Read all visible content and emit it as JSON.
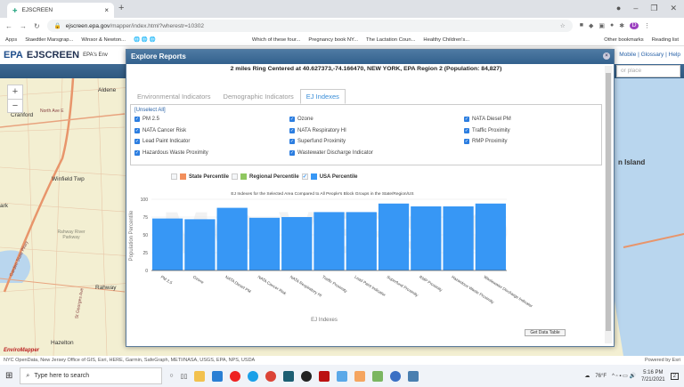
{
  "browser": {
    "tab_title": "EJSCREEN",
    "url_host": "ejscreen.epa.gov",
    "url_path": "/mapper/index.html?wherestr=10302",
    "bookmarks": [
      "Apps",
      "Staedtler Marsgrap...",
      "Winsor & Newton...",
      "Which of these four...",
      "Pregnancy book NY...",
      "The Lactation Coun...",
      "Healthy Children's..."
    ],
    "other_bookmarks": "Other bookmarks",
    "reading_list": "Reading list",
    "profile_initial": "D"
  },
  "app": {
    "logo": "EPA",
    "title": "EJSCREEN",
    "subtitle": "EPA's Env",
    "links": [
      "Mobile",
      "Glossary",
      "Help"
    ],
    "search_placeholder": "or place"
  },
  "map": {
    "labels": [
      "Aldene",
      "Cranford",
      "North Ave E",
      "Winfield Twp",
      "ark",
      "Rahway River Parkway",
      "Rahway",
      "Hazelton",
      "Garden State Pkwy",
      "St Georges Ave",
      "n Island",
      "EnviroMapper"
    ],
    "attribution": "NYC OpenData, New Jersey Office of GIS, Esri, HERE, Garmin, SafeGraph, METI/NASA, USGS, EPA, NPS, USDA",
    "powered": "Powered by Esri"
  },
  "modal": {
    "title": "Explore Reports",
    "subtitle": "2 miles Ring Centered at 40.627373,-74.166470, NEW YORK, EPA Region 2 (Population: 84,827)",
    "tabs": [
      {
        "label": "Environmental Indicators",
        "active": false
      },
      {
        "label": "Demographic Indicators",
        "active": false
      },
      {
        "label": "EJ Indexes",
        "active": true
      }
    ],
    "unselect_all": "[Unselect All]",
    "checkboxes": [
      {
        "label": "PM 2.5",
        "checked": true
      },
      {
        "label": "Ozone",
        "checked": true
      },
      {
        "label": "NATA Diesel PM",
        "checked": true
      },
      {
        "label": "NATA Cancer Risk",
        "checked": true
      },
      {
        "label": "NATA Respiratory HI",
        "checked": true
      },
      {
        "label": "Traffic Proximity",
        "checked": true
      },
      {
        "label": "Lead Paint Indicator",
        "checked": true
      },
      {
        "label": "Superfund Proximity",
        "checked": true
      },
      {
        "label": "RMP Proximity",
        "checked": true
      },
      {
        "label": "Hazardous Waste Proximity",
        "checked": true
      },
      {
        "label": "Wastewater Discharge Indicator",
        "checked": true
      }
    ],
    "watermark": "MO VERSIO",
    "get_data_table": "Get Data Table"
  },
  "chart_data": {
    "type": "bar",
    "title": "EJ Indexes for the Selected Area Compared to All People's Block Groups in the State/Region/US",
    "xlabel": "EJ Indexes",
    "ylabel": "Population Percentile",
    "ylim": [
      0,
      100
    ],
    "yticks": [
      0,
      25,
      50,
      75,
      100
    ],
    "grid": true,
    "legend": "top-left",
    "legend_items": [
      {
        "name": "State Percentile",
        "color": "#f28f5c",
        "checked": false
      },
      {
        "name": "Regional Percentile",
        "color": "#8fc760",
        "checked": false
      },
      {
        "name": "USA Percentile",
        "color": "#3797f5",
        "checked": true
      }
    ],
    "categories": [
      "PM 2.5",
      "Ozone",
      "NATA Diesel PM",
      "NATA Cancer Risk",
      "NATA Respiratory HI",
      "Traffic Proximity",
      "Lead Paint Indicator",
      "Superfund Proximity",
      "RMP Proximity",
      "Hazardous Waste Proximity",
      "Wastewater Discharge Indicator"
    ],
    "series": [
      {
        "name": "USA Percentile",
        "color": "#3797f5",
        "values": [
          73,
          72,
          88,
          74,
          75,
          82,
          82,
          94,
          90,
          90,
          94
        ]
      }
    ]
  },
  "taskbar": {
    "search_placeholder": "Type here to search",
    "weather": "76°F",
    "time": "5:16 PM",
    "date": "7/21/2021",
    "notifications": "2"
  }
}
